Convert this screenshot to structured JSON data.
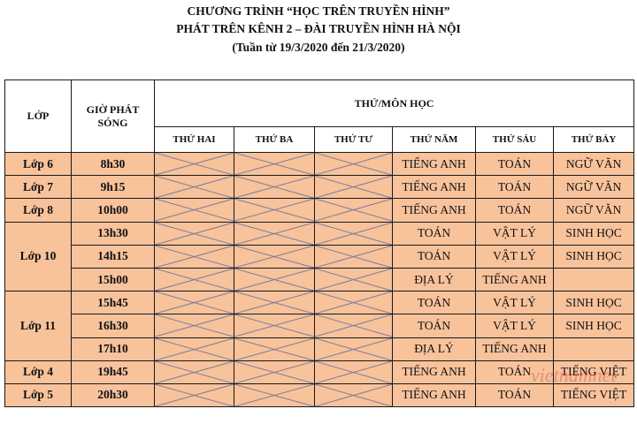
{
  "title": {
    "line1": "CHƯƠNG TRÌNH “HỌC TRÊN TRUYỀN HÌNH”",
    "line2": "PHÁT TRÊN KÊNH 2 – ĐÀI TRUYỀN HÌNH HÀ NỘI",
    "line3": "(Tuần từ 19/3/2020 đến 21/3/2020)"
  },
  "headers": {
    "class": "LỚP",
    "time": "GIỜ PHÁT SÓNG",
    "days_group": "THỨ/MÔN HỌC",
    "days": [
      "THỨ HAI",
      "THỨ BA",
      "THỨ TƯ",
      "THỨ NĂM",
      "THỨ SÁU",
      "THỨ BẢY"
    ]
  },
  "groups": [
    {
      "class": "Lớp 6",
      "rows": [
        {
          "time": "8h30",
          "subjects": [
            null,
            null,
            null,
            "TIẾNG ANH",
            "TOÁN",
            "NGỮ VĂN"
          ]
        }
      ]
    },
    {
      "class": "Lớp 7",
      "rows": [
        {
          "time": "9h15",
          "subjects": [
            null,
            null,
            null,
            "TIẾNG ANH",
            "TOÁN",
            "NGỮ VĂN"
          ]
        }
      ]
    },
    {
      "class": "Lớp 8",
      "rows": [
        {
          "time": "10h00",
          "subjects": [
            null,
            null,
            null,
            "TIẾNG ANH",
            "TOÁN",
            "NGỮ VĂN"
          ]
        }
      ]
    },
    {
      "class": "Lớp 10",
      "rows": [
        {
          "time": "13h30",
          "subjects": [
            null,
            null,
            null,
            "TOÁN",
            "VẬT LÝ",
            "SINH HỌC"
          ]
        },
        {
          "time": "14h15",
          "subjects": [
            null,
            null,
            null,
            "TOÁN",
            "VẬT LÝ",
            "SINH HỌC"
          ]
        },
        {
          "time": "15h00",
          "subjects": [
            null,
            null,
            null,
            "ĐỊA LÝ",
            "TIẾNG ANH",
            ""
          ]
        }
      ]
    },
    {
      "class": "Lớp 11",
      "rows": [
        {
          "time": "15h45",
          "subjects": [
            null,
            null,
            null,
            "TOÁN",
            "VẬT LÝ",
            "SINH HỌC"
          ]
        },
        {
          "time": "16h30",
          "subjects": [
            null,
            null,
            null,
            "TOÁN",
            "VẬT LÝ",
            "SINH HỌC"
          ]
        },
        {
          "time": "17h10",
          "subjects": [
            null,
            null,
            null,
            "ĐỊA LÝ",
            "TIẾNG ANH",
            ""
          ]
        }
      ]
    },
    {
      "class": "Lớp 4",
      "rows": [
        {
          "time": "19h45",
          "subjects": [
            null,
            null,
            null,
            "TIẾNG ANH",
            "TOÁN",
            "TIẾNG VIỆT"
          ]
        }
      ]
    },
    {
      "class": "Lớp 5",
      "rows": [
        {
          "time": "20h30",
          "subjects": [
            null,
            null,
            null,
            "TIẾNG ANH",
            "TOÁN",
            "TIẾNG VIỆT"
          ]
        }
      ]
    }
  ],
  "watermark": "vietnamnet",
  "colors": {
    "cell_fill": "#f8c29b",
    "cross_line": "#7a7f99",
    "border": "#1a1a1a"
  }
}
